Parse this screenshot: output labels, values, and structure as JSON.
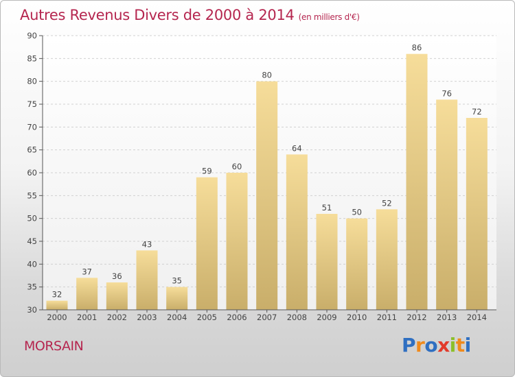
{
  "title": "Autres Revenus Divers de 2000 à 2014",
  "subtitle": "(en milliers d'€)",
  "place": "MORSAIN",
  "logo": {
    "text": "Proxiti",
    "letters": [
      {
        "char": "P",
        "color": "#2f6fc1"
      },
      {
        "char": "r",
        "color": "#f08a1c"
      },
      {
        "char": "o",
        "color": "#2f6fc1"
      },
      {
        "char": "x",
        "color": "#e23a2a"
      },
      {
        "char": "i",
        "color": "#8cbf2a"
      },
      {
        "char": "t",
        "color": "#f08a1c"
      },
      {
        "char": "i",
        "color": "#2f6fc1"
      }
    ]
  },
  "colors": {
    "bar_light": "#f6dd9a",
    "bar_dark": "#c9ae6a",
    "accent": "#b5264f"
  },
  "chart_data": {
    "type": "bar",
    "categories": [
      "2000",
      "2001",
      "2002",
      "2003",
      "2004",
      "2005",
      "2006",
      "2007",
      "2008",
      "2009",
      "2010",
      "2011",
      "2012",
      "2013",
      "2014"
    ],
    "values": [
      32,
      37,
      36,
      43,
      35,
      59,
      60,
      80,
      64,
      51,
      50,
      52,
      86,
      76,
      72
    ],
    "ylim": [
      30,
      90
    ],
    "yticks": [
      30,
      35,
      40,
      45,
      50,
      55,
      60,
      65,
      70,
      75,
      80,
      85,
      90
    ],
    "grid": true,
    "data_labels": true
  }
}
